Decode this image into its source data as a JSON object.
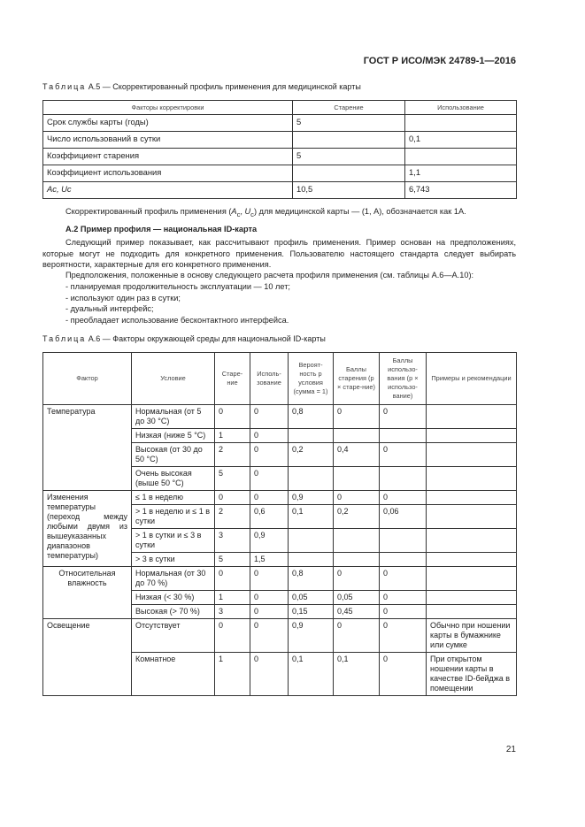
{
  "header": "ГОСТ Р ИСО/МЭК 24789-1—2016",
  "table_a5": {
    "caption_prefix": "Таблица",
    "caption_rest": " А.5 — Скорректированный профиль применения для медицинской карты",
    "columns": [
      "Факторы корректировки",
      "Старение",
      "Использование"
    ],
    "rows": [
      [
        "Срок службы карты (годы)",
        "5",
        ""
      ],
      [
        "Число использований в сутки",
        "",
        "0,1"
      ],
      [
        "Коэффициент старения",
        "5",
        ""
      ],
      [
        "Коэффициент использования",
        "",
        "1,1"
      ],
      [
        "Ac, Uc",
        "10,5",
        "6,743"
      ]
    ]
  },
  "para1": "Скорректированный профиль применения (Ac, Uc) для медицинской карты — (1, А), обозначается как 1А.",
  "section_title": "А.2 Пример профиля — национальная ID-карта",
  "para2": "Следующий пример показывает, как рассчитывают профиль применения. Пример основан на предположениях, которые могут не подходить для конкретного применения. Пользователю настоящего стандарта следует выбирать вероятности, характерные для его конкретного применения.",
  "para3": "Предположения, положенные в основу следующего расчета профиля применения (см. таблицы А.6—А.10):",
  "bullets": [
    "- планируемая продолжительность эксплуатации — 10 лет;",
    "- используют один раз в сутки;",
    "- дуальный интерфейс;",
    "- преобладает использование бесконтактного интерфейса."
  ],
  "table_a6": {
    "caption_prefix": "Таблица",
    "caption_rest": " А.6 — Факторы окружающей среды для национальной ID-карты",
    "columns": [
      "Фактор",
      "Условие",
      "Старе-ние",
      "Исполь-зование",
      "Вероят-ность p условия (сумма = 1)",
      "Баллы старения (p × старе-ние)",
      "Баллы использо-вания (p × использо-вание)",
      "Примеры и рекомендации"
    ],
    "groups": [
      {
        "factor": "Температура",
        "rows": [
          [
            "Нормальная (от 5 до 30 °C)",
            "0",
            "0",
            "0,8",
            "0",
            "0",
            ""
          ],
          [
            "Низкая (ниже 5 °C)",
            "1",
            "0",
            "",
            "",
            "",
            ""
          ],
          [
            "Высокая (от 30 до 50 °C)",
            "2",
            "0",
            "0,2",
            "0,4",
            "0",
            ""
          ],
          [
            "Очень высокая (выше 50 °C)",
            "5",
            "0",
            "",
            "",
            "",
            ""
          ]
        ]
      },
      {
        "factor": "Изменения температуры (переход между любыми двумя из вышеуказанных диапазонов температуры)",
        "rows": [
          [
            "≤ 1 в неделю",
            "0",
            "0",
            "0,9",
            "0",
            "0",
            ""
          ],
          [
            "> 1 в неделю и ≤ 1 в сутки",
            "2",
            "0,6",
            "0,1",
            "0,2",
            "0,06",
            ""
          ],
          [
            "> 1 в сутки и ≤ 3 в сутки",
            "3",
            "0,9",
            "",
            "",
            "",
            ""
          ],
          [
            "> 3 в сутки",
            "5",
            "1,5",
            "",
            "",
            "",
            ""
          ]
        ]
      },
      {
        "factor": "Относительная влажность",
        "rows": [
          [
            "Нормальная (от 30 до 70 %)",
            "0",
            "0",
            "0,8",
            "0",
            "0",
            ""
          ],
          [
            "Низкая (< 30 %)",
            "1",
            "0",
            "0,05",
            "0,05",
            "0",
            ""
          ],
          [
            "Высокая (> 70 %)",
            "3",
            "0",
            "0,15",
            "0,45",
            "0",
            ""
          ]
        ]
      },
      {
        "factor": "Освещение",
        "rows": [
          [
            "Отсутствует",
            "0",
            "0",
            "0,9",
            "0",
            "0",
            "Обычно при ношении карты в бумажнике или сумке"
          ],
          [
            "Комнатное",
            "1",
            "0",
            "0,1",
            "0,1",
            "0",
            "При открытом ношении карты в качестве ID-бейджа в помещении"
          ]
        ]
      }
    ]
  },
  "page_number": "21"
}
